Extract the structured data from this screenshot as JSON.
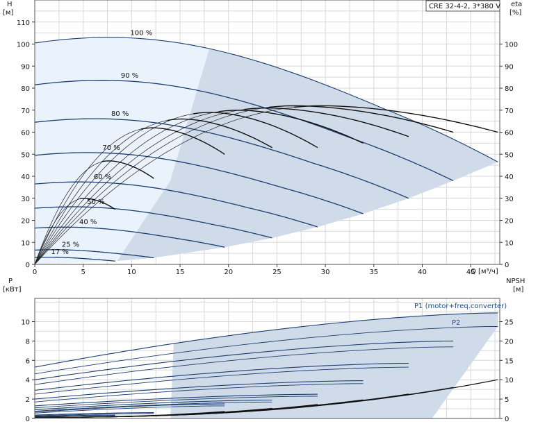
{
  "chart_data": [
    {
      "type": "line",
      "title": "CRE 32-4-2, 3*380 V",
      "xlabel": "Q [м³/ч]",
      "ylabel": "H",
      "ylabel_unit": "[м]",
      "y2label": "eta",
      "y2label_unit": "[%]",
      "xlim": [
        0,
        48
      ],
      "ylim": [
        0,
        120
      ],
      "y2lim": [
        0,
        120
      ],
      "x_ticks": [
        0,
        5,
        10,
        15,
        20,
        25,
        30,
        35,
        40,
        45
      ],
      "y_ticks": [
        0,
        10,
        20,
        30,
        40,
        50,
        60,
        70,
        80,
        90,
        100,
        110
      ],
      "y2_ticks": [
        0,
        10,
        20,
        30,
        40,
        50,
        60,
        70,
        80,
        90,
        100
      ],
      "grid": true,
      "speed_curves": [
        {
          "label": "100 %",
          "H0": 100.5,
          "Qmax": 47.8,
          "Hend": 46.5
        },
        {
          "label": "90 %",
          "H0": 81.5,
          "Qmax": 43.2,
          "Hend": 38
        },
        {
          "label": "80 %",
          "H0": 64.5,
          "Qmax": 38.6,
          "Hend": 30
        },
        {
          "label": "70 %",
          "H0": 49.5,
          "Qmax": 33.9,
          "Hend": 23
        },
        {
          "label": "60 %",
          "H0": 36.5,
          "Qmax": 29.2,
          "Hend": 17
        },
        {
          "label": "50 %",
          "H0": 25.5,
          "Qmax": 24.5,
          "Hend": 12
        },
        {
          "label": "40 %",
          "H0": 16.5,
          "Qmax": 19.6,
          "Hend": 7.8
        },
        {
          "label": "25 %",
          "H0": 6.5,
          "Qmax": 12.3,
          "Hend": 3
        },
        {
          "label": "17 %",
          "H0": 3.2,
          "Qmax": 8.3,
          "Hend": 1.5
        }
      ],
      "eta_curves": [
        {
          "Qmax": 47.8,
          "peak": 72,
          "end": 60
        },
        {
          "Qmax": 43.2,
          "peak": 72,
          "end": 60
        },
        {
          "Qmax": 38.6,
          "peak": 71,
          "end": 58
        },
        {
          "Qmax": 33.9,
          "peak": 70,
          "end": 55
        },
        {
          "Qmax": 29.2,
          "peak": 69,
          "end": 53
        },
        {
          "Qmax": 24.5,
          "peak": 66,
          "end": 53
        },
        {
          "Qmax": 19.6,
          "peak": 62,
          "end": 50
        },
        {
          "Qmax": 12.3,
          "peak": 47,
          "end": 39
        },
        {
          "Qmax": 8.3,
          "peak": 30,
          "end": 25
        }
      ]
    },
    {
      "type": "line",
      "xlabel": "",
      "ylabel": "P",
      "ylabel_unit": "[кВт]",
      "y2label": "NPSH",
      "y2label_unit": "[м]",
      "xlim": [
        0,
        48
      ],
      "ylim": [
        0,
        12.4
      ],
      "y2lim": [
        0,
        31
      ],
      "y_ticks": [
        0,
        2,
        4,
        6,
        8,
        10
      ],
      "y2_ticks": [
        0,
        5,
        10,
        15,
        20,
        25
      ],
      "grid": true,
      "series_labels": {
        "p1": "P1 (motor+freq.converter)",
        "p2": "P2"
      },
      "power_curves": [
        {
          "Qmax": 47.8,
          "p1_0": 5.3,
          "p1_end": 10.9,
          "p2_0": 4.6,
          "p2_end": 9.5
        },
        {
          "Qmax": 43.2,
          "p1_0": 4.0,
          "p1_end": 8.0,
          "p2_0": 3.5,
          "p2_end": 7.4
        },
        {
          "Qmax": 38.6,
          "p1_0": 2.9,
          "p1_end": 5.7,
          "p2_0": 2.5,
          "p2_end": 5.3
        },
        {
          "Qmax": 33.9,
          "p1_0": 2.0,
          "p1_end": 3.9,
          "p2_0": 1.7,
          "p2_end": 3.6
        },
        {
          "Qmax": 29.2,
          "p1_0": 1.3,
          "p1_end": 2.5,
          "p2_0": 1.1,
          "p2_end": 2.3
        },
        {
          "Qmax": 24.5,
          "p1_0": 0.9,
          "p1_end": 1.9,
          "p2_0": 0.75,
          "p2_end": 1.7
        },
        {
          "Qmax": 19.6,
          "p1_0": 0.65,
          "p1_end": 1.5,
          "p2_0": 0.55,
          "p2_end": 1.3
        },
        {
          "Qmax": 12.3,
          "p1_0": 0.35,
          "p1_end": 0.6,
          "p2_0": 0.28,
          "p2_end": 0.5
        },
        {
          "Qmax": 8.3,
          "p1_0": 0.2,
          "p1_end": 0.35,
          "p2_0": 0.15,
          "p2_end": 0.3
        }
      ],
      "npsh_curves": [
        {
          "Qmax": 47.8,
          "end": 10
        },
        {
          "Qmax": 43.2,
          "end": 8
        },
        {
          "Qmax": 38.6,
          "end": 6.3
        },
        {
          "Qmax": 33.9,
          "end": 4.8
        },
        {
          "Qmax": 29.2,
          "end": 3.6
        },
        {
          "Qmax": 24.5,
          "end": 2.6
        },
        {
          "Qmax": 19.6,
          "end": 1.8
        }
      ]
    }
  ]
}
